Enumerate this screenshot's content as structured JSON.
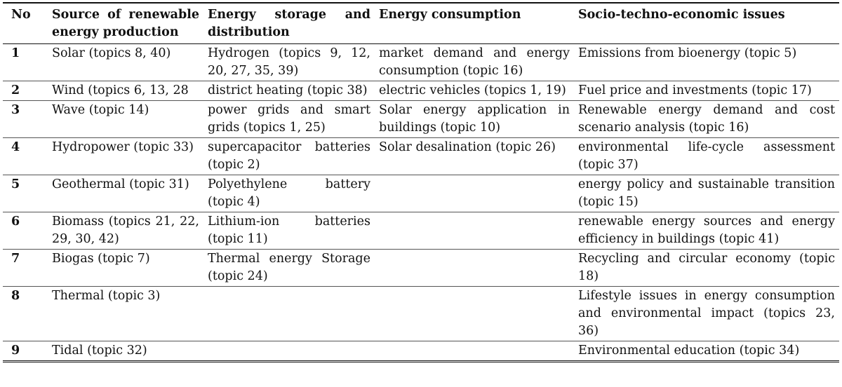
{
  "table": {
    "headers": [
      "No",
      "Source of renewable energy production",
      "Energy storage and distribution",
      "Energy consumption",
      "Socio-techno-economic issues"
    ],
    "rows": [
      {
        "no": "1",
        "source": "Solar (topics 8, 40)",
        "storage": "Hydrogen (topics 9, 12, 20, 27, 35, 39)",
        "consumption": "market demand and energy consumption (topic 16)",
        "issues": "Emissions from bioenergy (topic 5)"
      },
      {
        "no": "2",
        "source": "Wind (topics 6, 13, 28",
        "storage": "district heating (topic 38)",
        "consumption": "electric vehicles (topics 1, 19)",
        "issues": "Fuel price and investments (topic 17)"
      },
      {
        "no": "3",
        "source": "Wave (topic 14)",
        "storage": "power grids and smart grids (topics 1, 25)",
        "consumption": "Solar energy application in buildings (topic 10)",
        "issues": "Renewable energy demand and cost scenario analysis (topic 16)"
      },
      {
        "no": "4",
        "source": "Hydropower (topic 33)",
        "storage": "supercapacitor batteries (topic 2)",
        "consumption": "Solar desalination (topic 26)",
        "issues": "environmental life-cycle assessment (topic 37)"
      },
      {
        "no": "5",
        "source": "Geothermal (topic 31)",
        "storage": "Polyethylene battery (topic 4)",
        "consumption": "",
        "issues": "energy policy and sustainable transition (topic 15)"
      },
      {
        "no": "6",
        "source": "Biomass (topics 21, 22, 29, 30, 42)",
        "storage": "Lithium-ion batteries (topic 11)",
        "consumption": "",
        "issues": "renewable energy sources and energy efficiency in buildings (topic 41)"
      },
      {
        "no": "7",
        "source": "Biogas (topic 7)",
        "storage": "Thermal energy Storage (topic 24)",
        "consumption": "",
        "issues": "Recycling and circular economy (topic 18)"
      },
      {
        "no": "8",
        "source": "Thermal (topic 3)",
        "storage": "",
        "consumption": "",
        "issues": "Lifestyle issues in energy consumption and environmental impact (topics 23, 36)"
      },
      {
        "no": "9",
        "source": "Tidal (topic 32)",
        "storage": "",
        "consumption": "",
        "issues": "Environmental education (topic 34)"
      }
    ]
  }
}
